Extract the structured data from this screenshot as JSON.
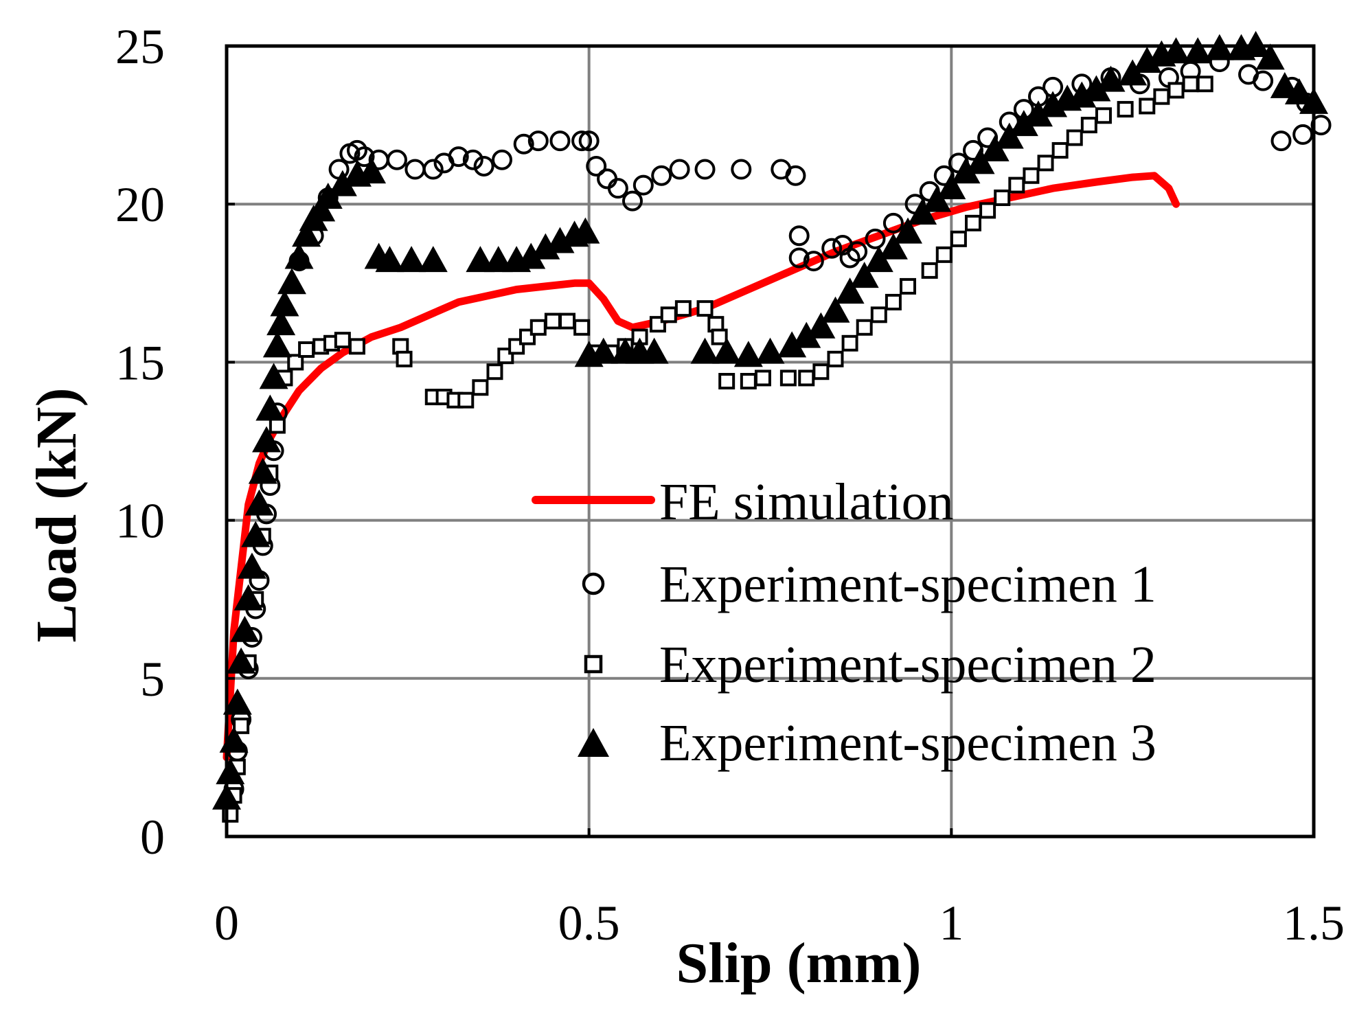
{
  "chart_data": {
    "type": "scatter",
    "xlabel": "Slip (mm)",
    "ylabel": "Load (kN)",
    "xlim": [
      0,
      1.5
    ],
    "ylim": [
      0,
      25
    ],
    "xticks": [
      "0",
      "0.5",
      "1",
      "1.5"
    ],
    "yticks": [
      "0",
      "5",
      "10",
      "15",
      "20",
      "25"
    ],
    "xtick_values": [
      0,
      0.5,
      1,
      1.5
    ],
    "ytick_values": [
      0,
      5,
      10,
      15,
      20,
      25
    ],
    "grid": true,
    "legend_position": "center-right",
    "colors": {
      "fe": "#ff0000",
      "markers": "#000000",
      "grid": "#808080"
    },
    "series": [
      {
        "name": "FE simulation",
        "kind": "line",
        "marker": "none",
        "points": [
          [
            0,
            2.5
          ],
          [
            0.005,
            4.5
          ],
          [
            0.01,
            6.5
          ],
          [
            0.02,
            8.5
          ],
          [
            0.03,
            10.5
          ],
          [
            0.045,
            11.8
          ],
          [
            0.06,
            12.6
          ],
          [
            0.08,
            13.4
          ],
          [
            0.1,
            14.1
          ],
          [
            0.13,
            14.8
          ],
          [
            0.16,
            15.3
          ],
          [
            0.2,
            15.8
          ],
          [
            0.24,
            16.1
          ],
          [
            0.28,
            16.5
          ],
          [
            0.32,
            16.9
          ],
          [
            0.36,
            17.1
          ],
          [
            0.4,
            17.3
          ],
          [
            0.44,
            17.4
          ],
          [
            0.48,
            17.5
          ],
          [
            0.5,
            17.5
          ],
          [
            0.52,
            17.0
          ],
          [
            0.54,
            16.3
          ],
          [
            0.56,
            16.1
          ],
          [
            0.6,
            16.3
          ],
          [
            0.66,
            16.7
          ],
          [
            0.72,
            17.3
          ],
          [
            0.78,
            17.9
          ],
          [
            0.84,
            18.5
          ],
          [
            0.9,
            19.0
          ],
          [
            0.96,
            19.5
          ],
          [
            1.02,
            19.9
          ],
          [
            1.08,
            20.2
          ],
          [
            1.14,
            20.5
          ],
          [
            1.2,
            20.7
          ],
          [
            1.25,
            20.85
          ],
          [
            1.28,
            20.9
          ],
          [
            1.3,
            20.5
          ],
          [
            1.31,
            20.0
          ]
        ]
      },
      {
        "name": "Experiment-specimen 1",
        "kind": "scatter",
        "marker": "circle",
        "points": [
          [
            0.01,
            1.5
          ],
          [
            0.015,
            2.7
          ],
          [
            0.02,
            3.7
          ],
          [
            0.03,
            5.3
          ],
          [
            0.035,
            6.3
          ],
          [
            0.04,
            7.2
          ],
          [
            0.045,
            8.1
          ],
          [
            0.05,
            9.2
          ],
          [
            0.055,
            10.2
          ],
          [
            0.06,
            11.1
          ],
          [
            0.065,
            12.2
          ],
          [
            0.07,
            13.4
          ],
          [
            0.1,
            18.2
          ],
          [
            0.12,
            19.0
          ],
          [
            0.14,
            20.2
          ],
          [
            0.155,
            21.1
          ],
          [
            0.17,
            21.6
          ],
          [
            0.18,
            21.7
          ],
          [
            0.19,
            21.5
          ],
          [
            0.21,
            21.4
          ],
          [
            0.235,
            21.4
          ],
          [
            0.26,
            21.1
          ],
          [
            0.285,
            21.1
          ],
          [
            0.3,
            21.3
          ],
          [
            0.32,
            21.5
          ],
          [
            0.34,
            21.4
          ],
          [
            0.355,
            21.2
          ],
          [
            0.38,
            21.4
          ],
          [
            0.41,
            21.9
          ],
          [
            0.43,
            22.0
          ],
          [
            0.46,
            22.0
          ],
          [
            0.49,
            22.0
          ],
          [
            0.5,
            22.0
          ],
          [
            0.51,
            21.2
          ],
          [
            0.525,
            20.8
          ],
          [
            0.54,
            20.5
          ],
          [
            0.56,
            20.1
          ],
          [
            0.575,
            20.6
          ],
          [
            0.6,
            20.9
          ],
          [
            0.625,
            21.1
          ],
          [
            0.66,
            21.1
          ],
          [
            0.71,
            21.1
          ],
          [
            0.765,
            21.1
          ],
          [
            0.785,
            20.9
          ],
          [
            0.79,
            19.0
          ],
          [
            0.79,
            18.3
          ],
          [
            0.81,
            18.2
          ],
          [
            0.835,
            18.6
          ],
          [
            0.85,
            18.7
          ],
          [
            0.86,
            18.3
          ],
          [
            0.87,
            18.5
          ],
          [
            0.895,
            18.9
          ],
          [
            0.92,
            19.4
          ],
          [
            0.95,
            20.0
          ],
          [
            0.97,
            20.4
          ],
          [
            0.99,
            20.9
          ],
          [
            1.01,
            21.3
          ],
          [
            1.03,
            21.7
          ],
          [
            1.05,
            22.1
          ],
          [
            1.08,
            22.6
          ],
          [
            1.1,
            23.0
          ],
          [
            1.12,
            23.4
          ],
          [
            1.14,
            23.7
          ],
          [
            1.18,
            23.8
          ],
          [
            1.22,
            24.0
          ],
          [
            1.26,
            23.8
          ],
          [
            1.3,
            24.0
          ],
          [
            1.33,
            24.2
          ],
          [
            1.37,
            24.5
          ],
          [
            1.41,
            24.1
          ],
          [
            1.43,
            23.9
          ],
          [
            1.47,
            23.7
          ],
          [
            1.49,
            23.2
          ],
          [
            1.51,
            22.5
          ],
          [
            1.485,
            22.2
          ],
          [
            1.455,
            22.0
          ]
        ]
      },
      {
        "name": "Experiment-specimen 2",
        "kind": "scatter",
        "marker": "square",
        "points": [
          [
            0.005,
            0.7
          ],
          [
            0.01,
            1.3
          ],
          [
            0.015,
            2.2
          ],
          [
            0.02,
            3.5
          ],
          [
            0.03,
            5.5
          ],
          [
            0.04,
            7.5
          ],
          [
            0.05,
            9.5
          ],
          [
            0.06,
            11.5
          ],
          [
            0.07,
            13.0
          ],
          [
            0.08,
            14.5
          ],
          [
            0.095,
            15.0
          ],
          [
            0.11,
            15.4
          ],
          [
            0.13,
            15.5
          ],
          [
            0.145,
            15.6
          ],
          [
            0.16,
            15.7
          ],
          [
            0.18,
            15.5
          ],
          [
            0.24,
            15.5
          ],
          [
            0.245,
            15.1
          ],
          [
            0.285,
            13.9
          ],
          [
            0.3,
            13.9
          ],
          [
            0.315,
            13.8
          ],
          [
            0.33,
            13.8
          ],
          [
            0.35,
            14.2
          ],
          [
            0.37,
            14.7
          ],
          [
            0.385,
            15.2
          ],
          [
            0.4,
            15.5
          ],
          [
            0.415,
            15.8
          ],
          [
            0.43,
            16.1
          ],
          [
            0.45,
            16.3
          ],
          [
            0.47,
            16.3
          ],
          [
            0.49,
            16.1
          ],
          [
            0.51,
            15.3
          ],
          [
            0.53,
            15.3
          ],
          [
            0.55,
            15.5
          ],
          [
            0.57,
            15.8
          ],
          [
            0.595,
            16.2
          ],
          [
            0.61,
            16.5
          ],
          [
            0.63,
            16.7
          ],
          [
            0.66,
            16.7
          ],
          [
            0.675,
            16.2
          ],
          [
            0.68,
            15.8
          ],
          [
            0.69,
            14.4
          ],
          [
            0.72,
            14.4
          ],
          [
            0.74,
            14.5
          ],
          [
            0.775,
            14.5
          ],
          [
            0.8,
            14.5
          ],
          [
            0.82,
            14.7
          ],
          [
            0.84,
            15.1
          ],
          [
            0.86,
            15.6
          ],
          [
            0.88,
            16.1
          ],
          [
            0.9,
            16.5
          ],
          [
            0.92,
            16.9
          ],
          [
            0.94,
            17.4
          ],
          [
            0.97,
            17.9
          ],
          [
            0.99,
            18.4
          ],
          [
            1.01,
            18.9
          ],
          [
            1.03,
            19.4
          ],
          [
            1.05,
            19.8
          ],
          [
            1.07,
            20.2
          ],
          [
            1.09,
            20.6
          ],
          [
            1.11,
            20.9
          ],
          [
            1.13,
            21.3
          ],
          [
            1.15,
            21.7
          ],
          [
            1.17,
            22.1
          ],
          [
            1.19,
            22.5
          ],
          [
            1.21,
            22.8
          ],
          [
            1.24,
            23.0
          ],
          [
            1.27,
            23.1
          ],
          [
            1.29,
            23.4
          ],
          [
            1.31,
            23.6
          ],
          [
            1.33,
            23.8
          ],
          [
            1.35,
            23.8
          ]
        ]
      },
      {
        "name": "Experiment-specimen 3",
        "kind": "scatter",
        "marker": "triangle",
        "points": [
          [
            0,
            1.2
          ],
          [
            0.005,
            2.0
          ],
          [
            0.01,
            3.0
          ],
          [
            0.015,
            4.2
          ],
          [
            0.02,
            5.5
          ],
          [
            0.025,
            6.5
          ],
          [
            0.03,
            7.5
          ],
          [
            0.035,
            8.5
          ],
          [
            0.04,
            9.5
          ],
          [
            0.045,
            10.5
          ],
          [
            0.05,
            11.5
          ],
          [
            0.055,
            12.5
          ],
          [
            0.06,
            13.5
          ],
          [
            0.065,
            14.5
          ],
          [
            0.07,
            15.5
          ],
          [
            0.075,
            16.2
          ],
          [
            0.08,
            16.8
          ],
          [
            0.09,
            17.5
          ],
          [
            0.1,
            18.3
          ],
          [
            0.11,
            19.0
          ],
          [
            0.12,
            19.5
          ],
          [
            0.13,
            19.8
          ],
          [
            0.14,
            20.2
          ],
          [
            0.16,
            20.6
          ],
          [
            0.18,
            20.9
          ],
          [
            0.2,
            21.0
          ],
          [
            0.21,
            18.3
          ],
          [
            0.225,
            18.2
          ],
          [
            0.255,
            18.2
          ],
          [
            0.285,
            18.2
          ],
          [
            0.35,
            18.2
          ],
          [
            0.375,
            18.2
          ],
          [
            0.4,
            18.2
          ],
          [
            0.42,
            18.3
          ],
          [
            0.44,
            18.6
          ],
          [
            0.46,
            18.8
          ],
          [
            0.48,
            19.0
          ],
          [
            0.495,
            19.1
          ],
          [
            0.5,
            15.2
          ],
          [
            0.52,
            15.3
          ],
          [
            0.55,
            15.3
          ],
          [
            0.57,
            15.3
          ],
          [
            0.59,
            15.3
          ],
          [
            0.66,
            15.3
          ],
          [
            0.69,
            15.3
          ],
          [
            0.72,
            15.2
          ],
          [
            0.75,
            15.3
          ],
          [
            0.78,
            15.5
          ],
          [
            0.8,
            15.8
          ],
          [
            0.82,
            16.1
          ],
          [
            0.84,
            16.6
          ],
          [
            0.86,
            17.2
          ],
          [
            0.88,
            17.7
          ],
          [
            0.9,
            18.2
          ],
          [
            0.92,
            18.6
          ],
          [
            0.94,
            19.1
          ],
          [
            0.96,
            19.7
          ],
          [
            0.98,
            20.1
          ],
          [
            1.0,
            20.5
          ],
          [
            1.02,
            21.0
          ],
          [
            1.04,
            21.3
          ],
          [
            1.06,
            21.7
          ],
          [
            1.08,
            22.1
          ],
          [
            1.1,
            22.5
          ],
          [
            1.12,
            22.8
          ],
          [
            1.14,
            23.1
          ],
          [
            1.16,
            23.3
          ],
          [
            1.18,
            23.4
          ],
          [
            1.2,
            23.6
          ],
          [
            1.22,
            23.9
          ],
          [
            1.25,
            24.1
          ],
          [
            1.27,
            24.5
          ],
          [
            1.29,
            24.7
          ],
          [
            1.31,
            24.8
          ],
          [
            1.34,
            24.8
          ],
          [
            1.37,
            24.9
          ],
          [
            1.4,
            24.9
          ],
          [
            1.42,
            25.0
          ],
          [
            1.44,
            24.6
          ],
          [
            1.46,
            23.7
          ],
          [
            1.48,
            23.5
          ],
          [
            1.5,
            23.2
          ]
        ]
      }
    ]
  }
}
